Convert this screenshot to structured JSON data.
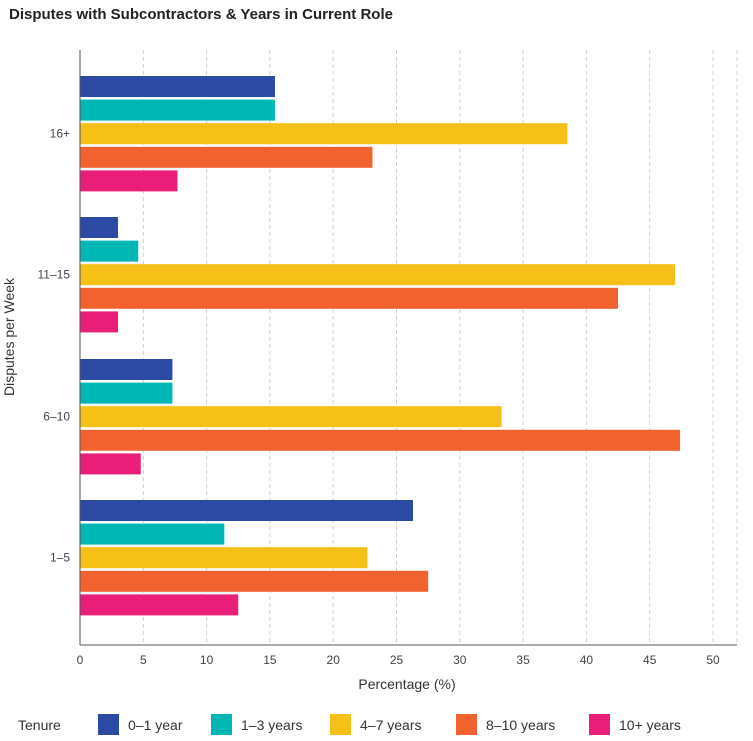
{
  "chart_data": {
    "type": "bar",
    "orientation": "horizontal",
    "title": "Disputes with Subcontractors & Years in Current Role",
    "xlabel": "Percentage (%)",
    "ylabel": "Disputes per Week",
    "xlim": [
      0,
      50
    ],
    "xticks": [
      "0",
      "5",
      "10",
      "15",
      "20",
      "25",
      "30",
      "35",
      "40",
      "45",
      "50"
    ],
    "grid": "vertical-dashed",
    "legend_title": "Tenure",
    "legend_position": "bottom",
    "categories": [
      "16+",
      "11–15",
      "6–10",
      "1–5"
    ],
    "series": [
      {
        "name": "0–1 year",
        "color": "#2c4aa3",
        "values": [
          15.4,
          3.0,
          7.3,
          26.3
        ]
      },
      {
        "name": "1–3 years",
        "color": "#00b7b3",
        "values": [
          15.4,
          4.6,
          7.3,
          11.4
        ]
      },
      {
        "name": "4–7 years",
        "color": "#f5c017",
        "values": [
          38.5,
          47.0,
          33.3,
          22.7
        ]
      },
      {
        "name": "8–10 years",
        "color": "#f2622e",
        "values": [
          23.1,
          42.5,
          47.4,
          27.5
        ]
      },
      {
        "name": "10+ years",
        "color": "#e91e78",
        "values": [
          7.7,
          3.0,
          4.8,
          12.5
        ]
      }
    ]
  }
}
